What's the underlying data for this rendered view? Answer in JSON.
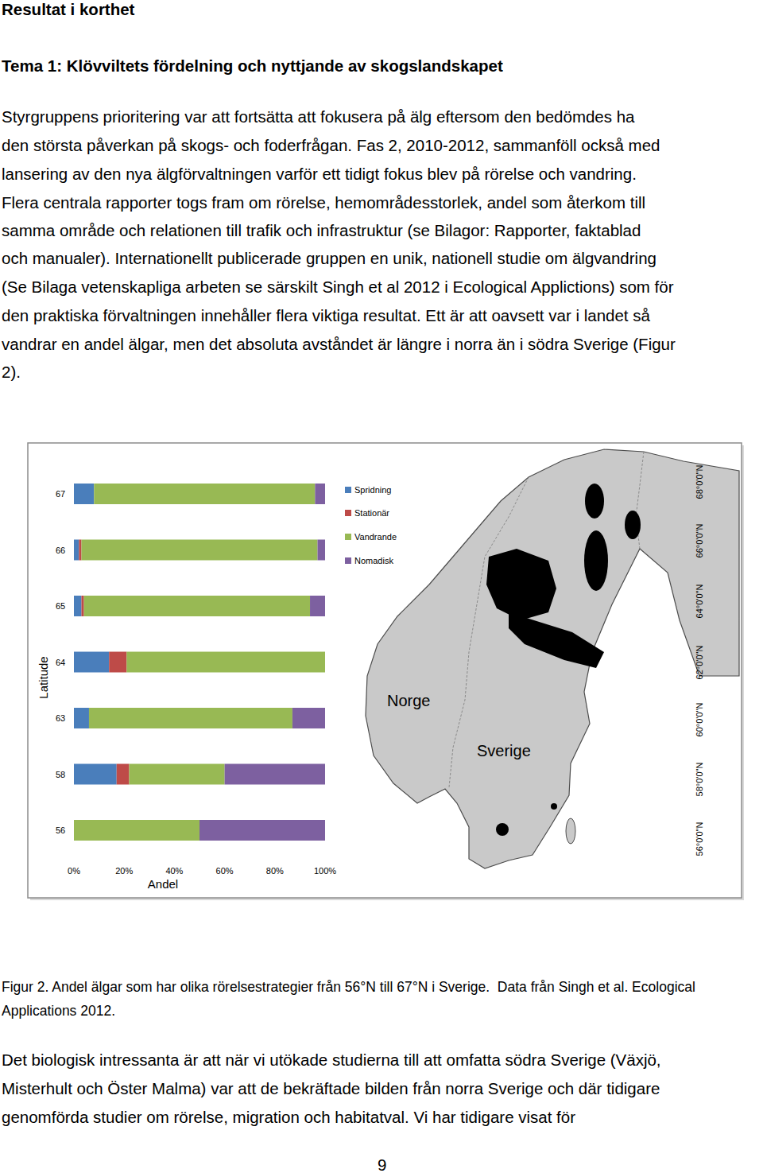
{
  "header": {
    "section_title": "Resultat i korthet",
    "theme_title": "Tema 1: Klövviltets fördelning och nyttjande av skogslandskapet"
  },
  "paragraphs": [
    {
      "lines": [
        "Styrgruppens prioritering var att fortsätta att fokusera på älg eftersom den bedömdes ha",
        "den största påverkan på skogs- och foderfrågan. Fas 2, 2010-2012, sammanföll också med",
        "lansering av den nya älgförvaltningen varför ett tidigt fokus blev på rörelse och vandring.",
        "Flera centrala rapporter togs fram om rörelse, hemområdesstorlek, andel som återkom till",
        "samma område och relationen till trafik och infrastruktur (se Bilagor: Rapporter, faktablad",
        "och manualer). Internationellt publicerade gruppen en unik, nationell studie om älgvandring",
        "(Se Bilaga vetenskapliga arbeten se särskilt Singh et al 2012 i Ecological Applictions) som för",
        "den praktiska förvaltningen innehåller flera viktiga resultat. Ett är att oavsett var i landet så",
        "vandrar en andel älgar, men det absoluta avståndet är längre i norra än i södra Sverige (Figur",
        "2)."
      ]
    },
    {
      "lines": [
        "Det biologisk intressanta är att när vi utökade studierna till att omfatta södra Sverige (Växjö,",
        "Misterhult och Öster Malma) var att de bekräftade bilden från norra Sverige och där tidigare",
        "genomförda studier om rörelse, migration och habitatval. Vi har tidigare visat för"
      ]
    }
  ],
  "figure": {
    "map": {
      "country_labels": [
        "Norge",
        "Sverige"
      ],
      "lat_labels": [
        "68°0'0\"N",
        "66°0'0\"N",
        "64°0'0\"N",
        "62°0'0\"N",
        "60°0'0\"N",
        "58°0'0\"N",
        "56°0'0\"N"
      ]
    },
    "caption_lines": [
      "Figur 2. Andel älgar som har olika rörelsestrategier från 56°N till 67°N i Sverige.  Data från Singh et al. Ecological",
      "Applications 2012."
    ]
  },
  "page_number": "9",
  "chart_data": {
    "type": "bar",
    "orientation": "horizontal",
    "stacked": true,
    "legend": "right",
    "x_label": "Andel",
    "y_label": "Latitude",
    "categories": [
      "67",
      "66",
      "65",
      "64",
      "63",
      "58",
      "56"
    ],
    "xlim": [
      0,
      100
    ],
    "xticks": [
      {
        "value": 0,
        "label": "0%"
      },
      {
        "value": 20,
        "label": "20%"
      },
      {
        "value": 40,
        "label": "40%"
      },
      {
        "value": 60,
        "label": "60%"
      },
      {
        "value": 80,
        "label": "80%"
      },
      {
        "value": 100,
        "label": "100%"
      }
    ],
    "series": [
      {
        "name": "Spridning",
        "color": "#4a7ebb",
        "values": [
          8,
          2,
          3,
          14,
          6,
          17,
          0
        ]
      },
      {
        "name": "Stationär",
        "color": "#be4b48",
        "values": [
          0,
          1,
          1,
          7,
          0,
          5,
          0
        ]
      },
      {
        "name": "Vandrande",
        "color": "#98b954",
        "values": [
          88,
          94,
          90,
          79,
          81,
          38,
          50
        ]
      },
      {
        "name": "Nomadisk",
        "color": "#7d60a0",
        "values": [
          4,
          3,
          6,
          0,
          13,
          40,
          50
        ]
      }
    ]
  }
}
